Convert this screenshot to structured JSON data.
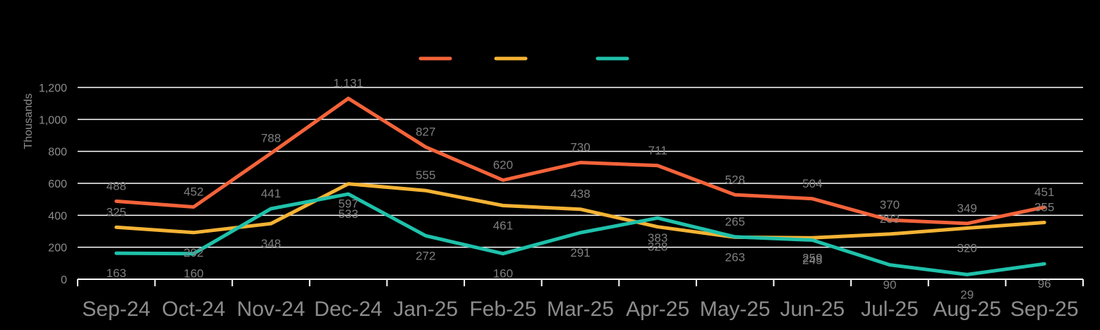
{
  "colors": {
    "background": "#000000",
    "grid": "#ffffff",
    "text": "#8c8c8c"
  },
  "chart_data": {
    "type": "line",
    "title": "",
    "xlabel": "",
    "ylabel": "Thousands",
    "ylim": [
      0,
      1200
    ],
    "yticks": [
      "0",
      "200",
      "400",
      "600",
      "800",
      "1,000",
      "1,200"
    ],
    "ytick_values": [
      0,
      200,
      400,
      600,
      800,
      1000,
      1200
    ],
    "grid": true,
    "legend": "top-center",
    "categories": [
      "Sep-24",
      "Oct-24",
      "Nov-24",
      "Dec-24",
      "Jan-25",
      "Feb-25",
      "Mar-25",
      "Apr-25",
      "May-25",
      "Jun-25",
      "Jul-25",
      "Aug-25",
      "Sep-25"
    ],
    "series": [
      {
        "color": "#f4633a",
        "values": [
          488,
          452,
          788,
          1131,
          827,
          620,
          730,
          711,
          528,
          504,
          370,
          349,
          451
        ],
        "labels": [
          "488",
          "452",
          "788",
          "1,131",
          "827",
          "620",
          "730",
          "711",
          "528",
          "504",
          "370",
          "349",
          "451"
        ]
      },
      {
        "color": "#f5b335",
        "values": [
          325,
          292,
          348,
          597,
          555,
          461,
          438,
          328,
          263,
          259,
          283,
          320,
          355
        ],
        "labels": [
          "325",
          "292",
          "348",
          "597",
          "555",
          "461",
          "438",
          "328",
          "263",
          "259",
          "283",
          "320",
          "355"
        ]
      },
      {
        "color": "#1fc1aa",
        "values": [
          163,
          160,
          441,
          533,
          272,
          160,
          291,
          383,
          265,
          245,
          90,
          29,
          96
        ],
        "labels": [
          "163",
          "160",
          "441",
          "533",
          "272",
          "160",
          "291",
          "383",
          "265",
          "245",
          "90",
          "29",
          "96"
        ]
      }
    ]
  }
}
